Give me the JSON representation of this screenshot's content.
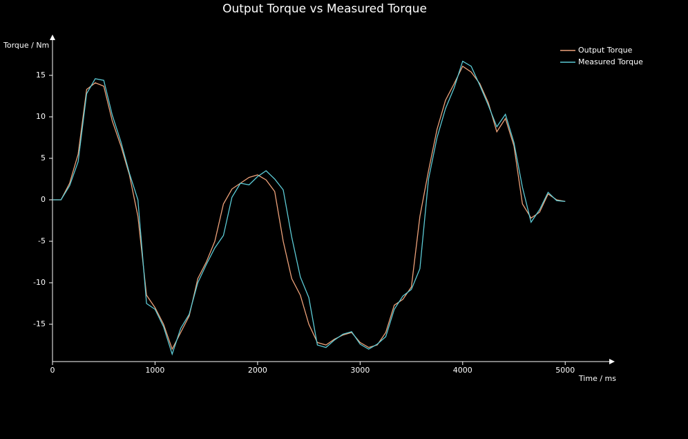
{
  "chart_data": {
    "type": "line",
    "title": "Output Torque vs Measured Torque",
    "x_label": "Time / ms",
    "y_label": "Torque / Nm",
    "x": [
      0,
      83,
      167,
      250,
      333,
      417,
      500,
      583,
      667,
      750,
      833,
      917,
      1000,
      1083,
      1167,
      1250,
      1333,
      1417,
      1500,
      1583,
      1667,
      1750,
      1833,
      1917,
      2000,
      2083,
      2167,
      2250,
      2333,
      2417,
      2500,
      2583,
      2667,
      2750,
      2833,
      2917,
      3000,
      3083,
      3167,
      3250,
      3333,
      3417,
      3500,
      3583,
      3667,
      3750,
      3833,
      3917,
      4000,
      4083,
      4167,
      4250,
      4333,
      4417,
      4500,
      4583,
      4667,
      4750,
      4833,
      4917,
      5000
    ],
    "series": [
      {
        "name": "Output Torque",
        "color": "#eea27a",
        "values": [
          0,
          0,
          2,
          5.5,
          13.3,
          14.1,
          13.7,
          9.5,
          6.5,
          3,
          -2,
          -11.5,
          -13,
          -15,
          -18,
          -16,
          -14,
          -9.5,
          -7.5,
          -5,
          -0.5,
          1.3,
          2,
          2.7,
          3,
          2.4,
          1,
          -5,
          -9.5,
          -11.5,
          -15,
          -17.2,
          -17.5,
          -16.8,
          -16.3,
          -16,
          -17.2,
          -17.8,
          -17.5,
          -16,
          -12.7,
          -12,
          -10.5,
          -2,
          3.5,
          8.5,
          12,
          14,
          16.1,
          15.4,
          14,
          11.7,
          8.2,
          9.8,
          6.5,
          -0.5,
          -2.2,
          -1.5,
          0.7,
          0,
          -0.2
        ]
      },
      {
        "name": "Measured Torque",
        "color": "#5ccbd6",
        "values": [
          0,
          0,
          1.7,
          4.6,
          12.8,
          14.6,
          14.4,
          10.2,
          7,
          3.2,
          0,
          -12.5,
          -13.2,
          -15.3,
          -18.6,
          -15.5,
          -13.8,
          -10,
          -7.8,
          -5.8,
          -4.3,
          0.3,
          2,
          1.8,
          2.8,
          3.5,
          2.5,
          1.2,
          -4.5,
          -9.3,
          -11.8,
          -17.5,
          -17.8,
          -16.9,
          -16.2,
          -15.9,
          -17.4,
          -18,
          -17.4,
          -16.5,
          -13.2,
          -11.6,
          -10.8,
          -8.3,
          2.5,
          7.5,
          11,
          13.5,
          16.7,
          16.1,
          13.8,
          11.4,
          8.8,
          10.3,
          6.9,
          1.5,
          -2.7,
          -1.2,
          0.9,
          -0.1,
          -0.2
        ]
      }
    ],
    "xlim": [
      0,
      5470
    ],
    "ylim": [
      -19.5,
      19.5
    ],
    "xticks": [
      0,
      1000,
      2000,
      3000,
      4000,
      5000
    ],
    "yticks": [
      -15,
      -10,
      -5,
      0,
      5,
      10,
      15
    ],
    "grid": false,
    "legend": "top-right"
  }
}
